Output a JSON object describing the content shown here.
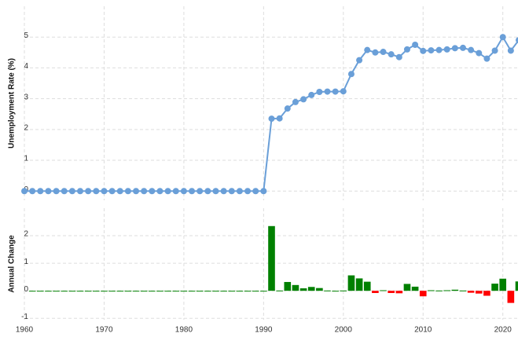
{
  "chart_data": [
    {
      "type": "line",
      "y_label": "Unemployment Rate (%)",
      "color": "#6a9fd8",
      "grid": true,
      "x": [
        1960,
        1961,
        1962,
        1963,
        1964,
        1965,
        1966,
        1967,
        1968,
        1969,
        1970,
        1971,
        1972,
        1973,
        1974,
        1975,
        1976,
        1977,
        1978,
        1979,
        1980,
        1981,
        1982,
        1983,
        1984,
        1985,
        1986,
        1987,
        1988,
        1989,
        1990,
        1991,
        1992,
        1993,
        1994,
        1995,
        1996,
        1997,
        1998,
        1999,
        2000,
        2001,
        2002,
        2003,
        2004,
        2005,
        2006,
        2007,
        2008,
        2009,
        2010,
        2011,
        2012,
        2013,
        2014,
        2015,
        2016,
        2017,
        2018,
        2019,
        2020,
        2021,
        2022
      ],
      "values": [
        0,
        0,
        0,
        0,
        0,
        0,
        0,
        0,
        0,
        0,
        0,
        0,
        0,
        0,
        0,
        0,
        0,
        0,
        0,
        0,
        0,
        0,
        0,
        0,
        0,
        0,
        0,
        0,
        0,
        0,
        0,
        2.35,
        2.36,
        2.68,
        2.89,
        2.98,
        3.12,
        3.22,
        3.23,
        3.23,
        3.24,
        3.8,
        4.25,
        4.58,
        4.5,
        4.52,
        4.44,
        4.35,
        4.6,
        4.75,
        4.55,
        4.57,
        4.58,
        4.6,
        4.64,
        4.65,
        4.58,
        4.48,
        4.3,
        4.56,
        5.0,
        4.56,
        4.9
      ],
      "xlim": [
        1960,
        2022
      ],
      "xticks": [
        1960,
        1970,
        1980,
        1990,
        2000,
        2010,
        2020
      ],
      "ylim": [
        -0.3,
        6
      ],
      "yticks": [
        0,
        1,
        2,
        3,
        4,
        5
      ]
    },
    {
      "type": "bar",
      "y_label": "Annual Change",
      "positive_color": "#008000",
      "negative_color": "#ff0000",
      "grid": true,
      "x": [
        1960,
        1961,
        1962,
        1963,
        1964,
        1965,
        1966,
        1967,
        1968,
        1969,
        1970,
        1971,
        1972,
        1973,
        1974,
        1975,
        1976,
        1977,
        1978,
        1979,
        1980,
        1981,
        1982,
        1983,
        1984,
        1985,
        1986,
        1987,
        1988,
        1989,
        1990,
        1991,
        1992,
        1993,
        1994,
        1995,
        1996,
        1997,
        1998,
        1999,
        2000,
        2001,
        2002,
        2003,
        2004,
        2005,
        2006,
        2007,
        2008,
        2009,
        2010,
        2011,
        2012,
        2013,
        2014,
        2015,
        2016,
        2017,
        2018,
        2019,
        2020,
        2021,
        2022
      ],
      "values": [
        null,
        0,
        0,
        0,
        0,
        0,
        0,
        0,
        0,
        0,
        0,
        0,
        0,
        0,
        0,
        0,
        0,
        0,
        0,
        0,
        0,
        0,
        0,
        0,
        0,
        0,
        0,
        0,
        0,
        0,
        0,
        2.35,
        0.01,
        0.32,
        0.21,
        0.09,
        0.14,
        0.1,
        0.01,
        0,
        0.01,
        0.56,
        0.45,
        0.33,
        -0.08,
        0.02,
        -0.08,
        -0.09,
        0.25,
        0.15,
        -0.2,
        0.02,
        0.01,
        0.02,
        0.04,
        0.01,
        -0.07,
        -0.1,
        -0.18,
        0.26,
        0.44,
        -0.44,
        0.34
      ],
      "xlim": [
        1960,
        2022
      ],
      "xticks": [
        1960,
        1970,
        1980,
        1990,
        2000,
        2010,
        2020
      ],
      "ylim": [
        -1.05,
        3
      ],
      "yticks": [
        -1,
        0,
        1,
        2
      ]
    }
  ]
}
